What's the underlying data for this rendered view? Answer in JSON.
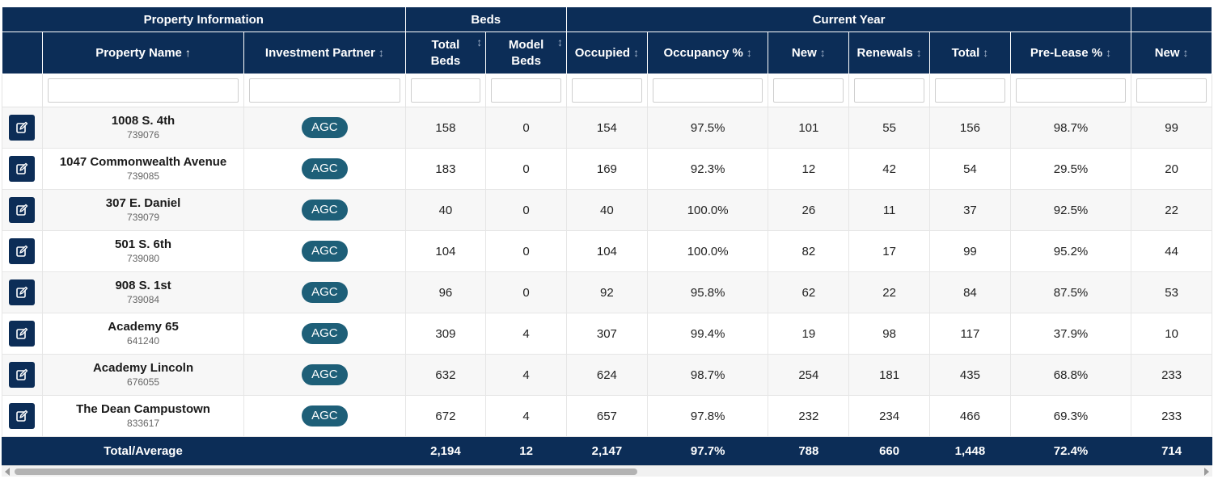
{
  "groups": {
    "property_info": "Property Information",
    "beds": "Beds",
    "current_year": "Current Year"
  },
  "headers": {
    "property_name": "Property Name",
    "investment_partner": "Investment Partner",
    "total_beds_line1": "Total",
    "total_beds_line2": "Beds",
    "model_beds_line1": "Model",
    "model_beds_line2": "Beds",
    "occupied": "Occupied",
    "occupancy_pct": "Occupancy %",
    "new": "New",
    "renewals": "Renewals",
    "total": "Total",
    "prelease_pct": "Pre-Lease %",
    "new_next": "New"
  },
  "sort_icons": {
    "asc": "↑",
    "both": "↕"
  },
  "rows": [
    {
      "name": "1008 S. 4th",
      "id": "739076",
      "partner": "AGC",
      "total_beds": "158",
      "model_beds": "0",
      "occupied": "154",
      "occupancy": "97.5%",
      "new": "101",
      "renewals": "55",
      "total": "156",
      "prelease": "98.7%",
      "new_next": "99"
    },
    {
      "name": "1047 Commonwealth Avenue",
      "id": "739085",
      "partner": "AGC",
      "total_beds": "183",
      "model_beds": "0",
      "occupied": "169",
      "occupancy": "92.3%",
      "new": "12",
      "renewals": "42",
      "total": "54",
      "prelease": "29.5%",
      "new_next": "20"
    },
    {
      "name": "307 E. Daniel",
      "id": "739079",
      "partner": "AGC",
      "total_beds": "40",
      "model_beds": "0",
      "occupied": "40",
      "occupancy": "100.0%",
      "new": "26",
      "renewals": "11",
      "total": "37",
      "prelease": "92.5%",
      "new_next": "22"
    },
    {
      "name": "501 S. 6th",
      "id": "739080",
      "partner": "AGC",
      "total_beds": "104",
      "model_beds": "0",
      "occupied": "104",
      "occupancy": "100.0%",
      "new": "82",
      "renewals": "17",
      "total": "99",
      "prelease": "95.2%",
      "new_next": "44"
    },
    {
      "name": "908 S. 1st",
      "id": "739084",
      "partner": "AGC",
      "total_beds": "96",
      "model_beds": "0",
      "occupied": "92",
      "occupancy": "95.8%",
      "new": "62",
      "renewals": "22",
      "total": "84",
      "prelease": "87.5%",
      "new_next": "53"
    },
    {
      "name": "Academy 65",
      "id": "641240",
      "partner": "AGC",
      "total_beds": "309",
      "model_beds": "4",
      "occupied": "307",
      "occupancy": "99.4%",
      "new": "19",
      "renewals": "98",
      "total": "117",
      "prelease": "37.9%",
      "new_next": "10"
    },
    {
      "name": "Academy Lincoln",
      "id": "676055",
      "partner": "AGC",
      "total_beds": "632",
      "model_beds": "4",
      "occupied": "624",
      "occupancy": "98.7%",
      "new": "254",
      "renewals": "181",
      "total": "435",
      "prelease": "68.8%",
      "new_next": "233"
    },
    {
      "name": "The Dean Campustown",
      "id": "833617",
      "partner": "AGC",
      "total_beds": "672",
      "model_beds": "4",
      "occupied": "657",
      "occupancy": "97.8%",
      "new": "232",
      "renewals": "234",
      "total": "466",
      "prelease": "69.3%",
      "new_next": "233"
    }
  ],
  "footer": {
    "label": "Total/Average",
    "total_beds": "2,194",
    "model_beds": "12",
    "occupied": "2,147",
    "occupancy": "97.7%",
    "new": "788",
    "renewals": "660",
    "total": "1,448",
    "prelease": "72.4%",
    "new_next": "714"
  },
  "icons": {
    "edit": "edit-icon",
    "scroll_left": "arrow-left-icon",
    "scroll_right": "arrow-right-icon"
  },
  "colors": {
    "header_bg": "#0c2d57",
    "badge_bg": "#1e5f78"
  }
}
